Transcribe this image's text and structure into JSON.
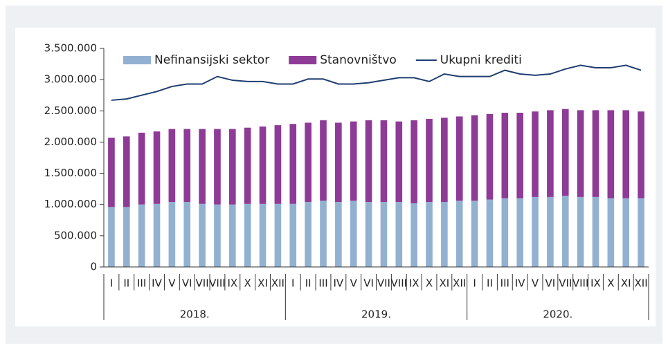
{
  "chart_data": {
    "type": "stacked-bar-line",
    "categories": [
      "I",
      "II",
      "III",
      "IV",
      "V",
      "VI",
      "VII",
      "VIII",
      "IX",
      "X",
      "XI",
      "XII",
      "I",
      "II",
      "III",
      "IV",
      "V",
      "VI",
      "VII",
      "VIII",
      "IX",
      "X",
      "XI",
      "XII",
      "I",
      "II",
      "III",
      "IV",
      "V",
      "VI",
      "VII",
      "VIII",
      "IX",
      "X",
      "XI",
      "XII"
    ],
    "years": [
      "2018.",
      "2019.",
      "2020."
    ],
    "series": [
      {
        "name": "Nefinansijski sektor",
        "color": "#92b1d1",
        "kind": "bar",
        "values": [
          960000,
          960000,
          1000000,
          1010000,
          1040000,
          1040000,
          1010000,
          1000000,
          1000000,
          1010000,
          1010000,
          1010000,
          1010000,
          1040000,
          1060000,
          1040000,
          1060000,
          1040000,
          1040000,
          1040000,
          1020000,
          1040000,
          1040000,
          1060000,
          1060000,
          1080000,
          1100000,
          1100000,
          1120000,
          1120000,
          1140000,
          1120000,
          1120000,
          1100000,
          1100000,
          1100000
        ]
      },
      {
        "name": "Stanovništvo",
        "color": "#8e3a97",
        "kind": "bar",
        "values": [
          1110000,
          1130000,
          1150000,
          1160000,
          1170000,
          1170000,
          1200000,
          1210000,
          1210000,
          1220000,
          1240000,
          1260000,
          1280000,
          1270000,
          1290000,
          1270000,
          1270000,
          1310000,
          1310000,
          1290000,
          1330000,
          1330000,
          1350000,
          1350000,
          1370000,
          1370000,
          1370000,
          1370000,
          1370000,
          1390000,
          1390000,
          1390000,
          1390000,
          1410000,
          1410000,
          1390000
        ]
      },
      {
        "name": "Ukupni krediti",
        "color": "#1f3d70",
        "kind": "line",
        "values": [
          2670000,
          2690000,
          2750000,
          2810000,
          2890000,
          2930000,
          2930000,
          3050000,
          2990000,
          2970000,
          2970000,
          2930000,
          2930000,
          3010000,
          3010000,
          2930000,
          2930000,
          2950000,
          2990000,
          3030000,
          3030000,
          2970000,
          3090000,
          3050000,
          3050000,
          3050000,
          3150000,
          3090000,
          3070000,
          3090000,
          3170000,
          3230000,
          3190000,
          3190000,
          3230000,
          3150000
        ]
      }
    ],
    "ylim": [
      0,
      3500000
    ],
    "yticks": [
      0,
      {
        "value": 500000,
        "label": "500.000"
      },
      {
        "value": 1000000,
        "label": "1.000.000"
      },
      {
        "value": 1500000,
        "label": "1.500.000"
      },
      {
        "value": 2000000,
        "label": "2.000.000"
      },
      {
        "value": 2500000,
        "label": "2.500.000"
      },
      {
        "value": 3000000,
        "label": "3.000.000"
      },
      {
        "value": 3500000,
        "label": "3.500.000"
      }
    ],
    "legend": "top"
  }
}
